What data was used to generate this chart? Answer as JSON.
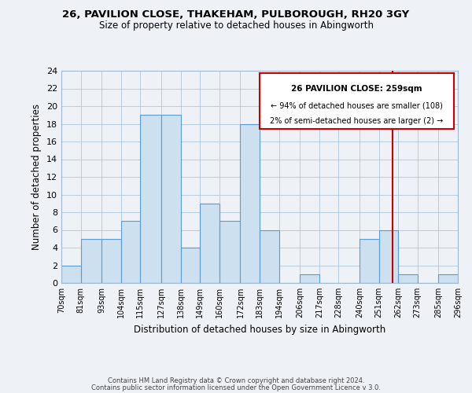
{
  "title": "26, PAVILION CLOSE, THAKEHAM, PULBOROUGH, RH20 3GY",
  "subtitle": "Size of property relative to detached houses in Abingworth",
  "xlabel": "Distribution of detached houses by size in Abingworth",
  "ylabel": "Number of detached properties",
  "footer_line1": "Contains HM Land Registry data © Crown copyright and database right 2024.",
  "footer_line2": "Contains public sector information licensed under the Open Government Licence v 3.0.",
  "bin_labels": [
    "70sqm",
    "81sqm",
    "93sqm",
    "104sqm",
    "115sqm",
    "127sqm",
    "138sqm",
    "149sqm",
    "160sqm",
    "172sqm",
    "183sqm",
    "194sqm",
    "206sqm",
    "217sqm",
    "228sqm",
    "240sqm",
    "251sqm",
    "262sqm",
    "273sqm",
    "285sqm",
    "296sqm"
  ],
  "bin_edges": [
    70,
    81,
    93,
    104,
    115,
    127,
    138,
    149,
    160,
    172,
    183,
    194,
    206,
    217,
    228,
    240,
    251,
    262,
    273,
    285,
    296
  ],
  "bar_heights": [
    2,
    5,
    5,
    7,
    19,
    19,
    4,
    9,
    7,
    18,
    6,
    0,
    1,
    0,
    0,
    5,
    6,
    1,
    0,
    1,
    0
  ],
  "bar_color": "#cce0f0",
  "bar_edge_color": "#5b9bd5",
  "reference_line_x": 259,
  "reference_line_color": "#cc0000",
  "annotation_title": "26 PAVILION CLOSE: 259sqm",
  "annotation_line1": "← 94% of detached houses are smaller (108)",
  "annotation_line2": "2% of semi-detached houses are larger (2) →",
  "annotation_box_facecolor": "white",
  "annotation_box_edge_color": "#cc0000",
  "ylim": [
    0,
    24
  ],
  "background_color": "#eef2f7"
}
